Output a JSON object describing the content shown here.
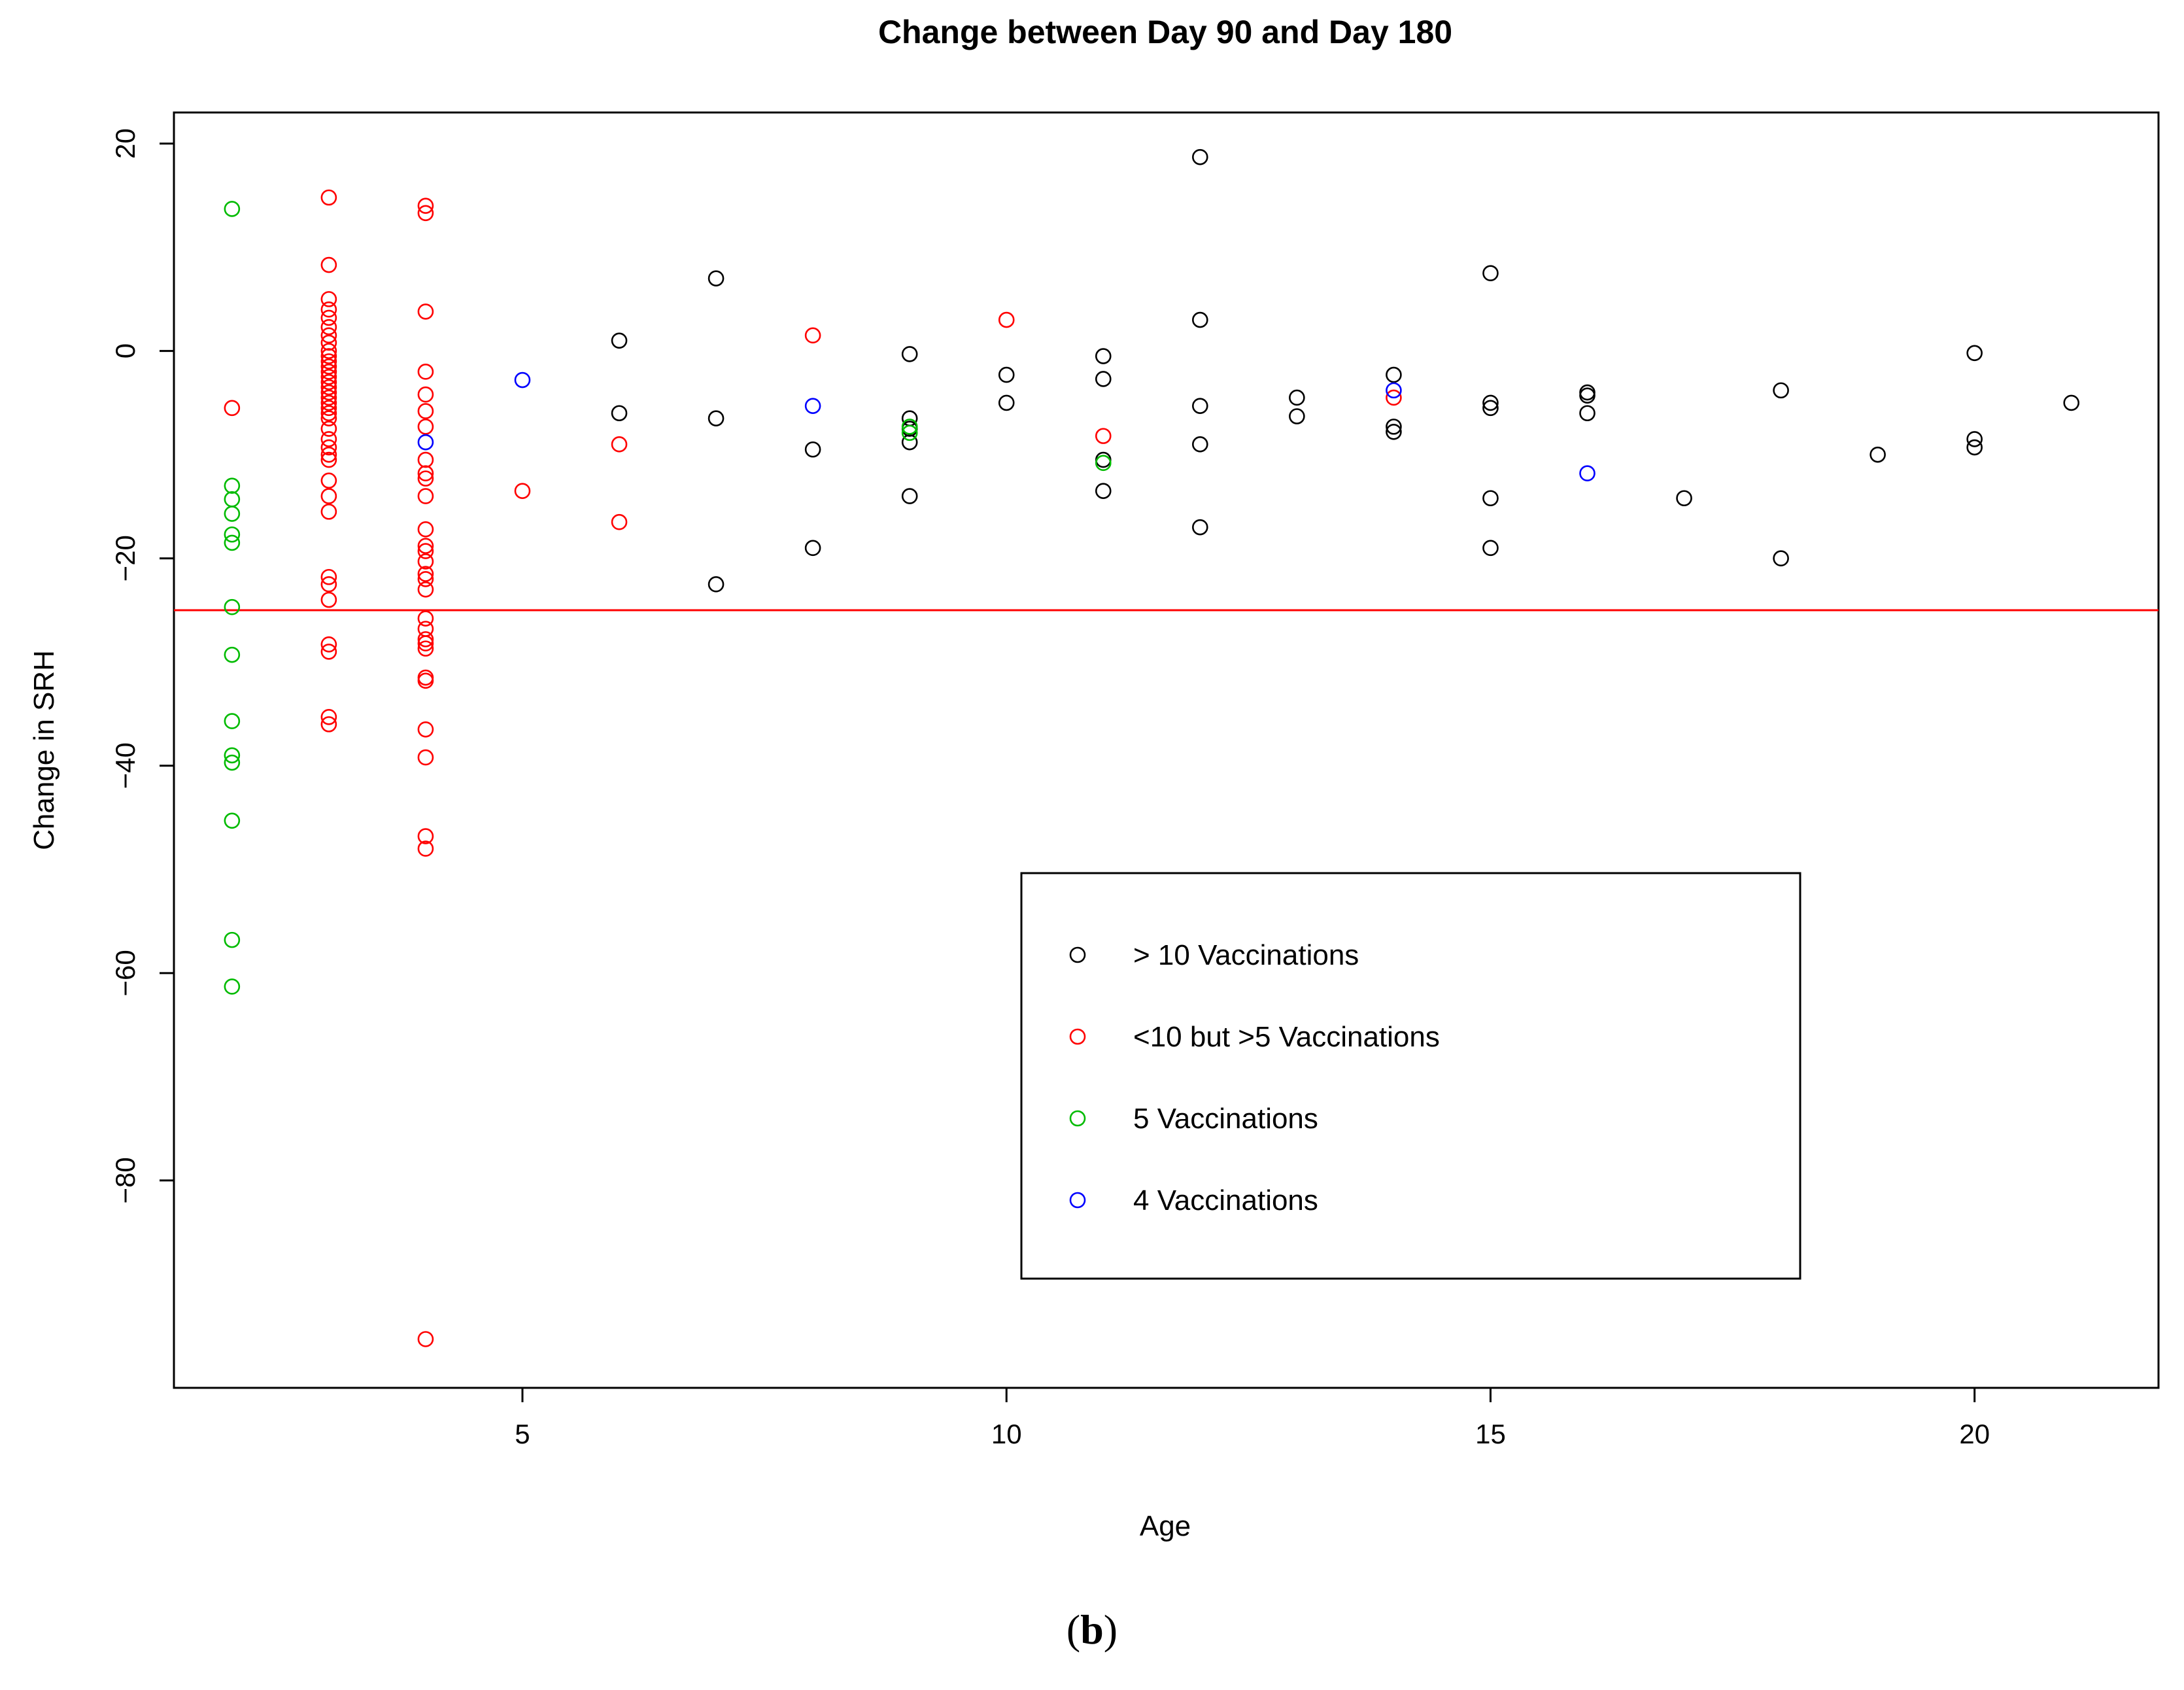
{
  "caption": {
    "open": "(",
    "letter": "b",
    "close": ")"
  },
  "chart_data": {
    "type": "scatter",
    "title": "Change between Day 90 and Day 180",
    "xlabel": "Age",
    "ylabel": "Change in SRH",
    "xlim": [
      1.4,
      21.9
    ],
    "ylim": [
      -100,
      23
    ],
    "x_ticks": [
      5,
      10,
      15,
      20
    ],
    "x_tick_labels": [
      "5",
      "10",
      "15",
      "20"
    ],
    "y_ticks": [
      20,
      0,
      -20,
      -40,
      -60,
      -80
    ],
    "y_tick_labels": [
      "20",
      "0",
      "−20",
      "−40",
      "−60",
      "−80"
    ],
    "reference_line": {
      "y": -25,
      "color": "#ff0000"
    },
    "legend_position": "bottom-center",
    "series": [
      {
        "name": "> 10 Vaccinations",
        "color": "#000000",
        "points": [
          [
            6,
            1
          ],
          [
            6,
            -6
          ],
          [
            7,
            7
          ],
          [
            7,
            -6.5
          ],
          [
            7,
            -22.5
          ],
          [
            8,
            -9.5
          ],
          [
            8,
            -19
          ],
          [
            9,
            -0.3
          ],
          [
            9,
            -6.5
          ],
          [
            9,
            -7.5
          ],
          [
            9,
            -8.8
          ],
          [
            9,
            -14
          ],
          [
            10,
            -2.3
          ],
          [
            10,
            -5
          ],
          [
            11,
            -0.5
          ],
          [
            11,
            -2.7
          ],
          [
            11,
            -10.5
          ],
          [
            11,
            -13.5
          ],
          [
            12,
            18.7
          ],
          [
            12,
            3
          ],
          [
            12,
            -5.3
          ],
          [
            12,
            -9
          ],
          [
            12,
            -17
          ],
          [
            13,
            -4.5
          ],
          [
            13,
            -6.3
          ],
          [
            14,
            -2.3
          ],
          [
            14,
            -7.3
          ],
          [
            14,
            -7.8
          ],
          [
            15,
            7.5
          ],
          [
            15,
            -5
          ],
          [
            15,
            -5.5
          ],
          [
            15,
            -14.2
          ],
          [
            15,
            -19
          ],
          [
            16,
            -4
          ],
          [
            16,
            -4.3
          ],
          [
            16,
            -6
          ],
          [
            17,
            -14.2
          ],
          [
            18,
            -3.8
          ],
          [
            18,
            -20
          ],
          [
            19,
            -10
          ],
          [
            20,
            -0.2
          ],
          [
            20,
            -8.5
          ],
          [
            20,
            -9.3
          ],
          [
            21,
            -5
          ]
        ]
      },
      {
        "name": "<10 but >5 Vaccinations",
        "color": "#ff0000",
        "points": [
          [
            2,
            -5.5
          ],
          [
            3,
            14.8
          ],
          [
            3,
            8.3
          ],
          [
            3,
            5
          ],
          [
            3,
            4
          ],
          [
            3,
            3.2
          ],
          [
            3,
            2.3
          ],
          [
            3,
            1.5
          ],
          [
            3,
            0.8
          ],
          [
            3,
            0
          ],
          [
            3,
            -0.5
          ],
          [
            3,
            -1
          ],
          [
            3,
            -1.5
          ],
          [
            3,
            -2
          ],
          [
            3,
            -2.5
          ],
          [
            3,
            -3
          ],
          [
            3,
            -3.5
          ],
          [
            3,
            -4
          ],
          [
            3,
            -4.5
          ],
          [
            3,
            -5
          ],
          [
            3,
            -5.5
          ],
          [
            3,
            -6
          ],
          [
            3,
            -6.5
          ],
          [
            3,
            -7.5
          ],
          [
            3,
            -8.5
          ],
          [
            3,
            -9.3
          ],
          [
            3,
            -10
          ],
          [
            3,
            -10.5
          ],
          [
            3,
            -12.5
          ],
          [
            3,
            -14
          ],
          [
            3,
            -15.5
          ],
          [
            3,
            -21.8
          ],
          [
            3,
            -22.5
          ],
          [
            3,
            -24
          ],
          [
            3,
            -28.3
          ],
          [
            3,
            -29
          ],
          [
            3,
            -35.3
          ],
          [
            3,
            -36
          ],
          [
            4,
            14
          ],
          [
            4,
            13.3
          ],
          [
            4,
            3.8
          ],
          [
            4,
            -2
          ],
          [
            4,
            -4.2
          ],
          [
            4,
            -5.8
          ],
          [
            4,
            -7.3
          ],
          [
            4,
            -10.5
          ],
          [
            4,
            -11.8
          ],
          [
            4,
            -12.3
          ],
          [
            4,
            -14
          ],
          [
            4,
            -17.2
          ],
          [
            4,
            -18.8
          ],
          [
            4,
            -19.3
          ],
          [
            4,
            -20.3
          ],
          [
            4,
            -21.5
          ],
          [
            4,
            -22
          ],
          [
            4,
            -23
          ],
          [
            4,
            -25.8
          ],
          [
            4,
            -26.8
          ],
          [
            4,
            -27.8
          ],
          [
            4,
            -28.2
          ],
          [
            4,
            -28.7
          ],
          [
            4,
            -31.5
          ],
          [
            4,
            -31.8
          ],
          [
            4,
            -36.5
          ],
          [
            4,
            -39.2
          ],
          [
            4,
            -46.8
          ],
          [
            4,
            -48
          ],
          [
            4,
            -95.3
          ],
          [
            5,
            -13.5
          ],
          [
            6,
            -9
          ],
          [
            6,
            -16.5
          ],
          [
            8,
            1.5
          ],
          [
            10,
            3
          ],
          [
            11,
            -8.2
          ],
          [
            14,
            -4.5
          ]
        ]
      },
      {
        "name": "5 Vaccinations",
        "color": "#00bb00",
        "points": [
          [
            2,
            13.7
          ],
          [
            2,
            -13
          ],
          [
            2,
            -14.3
          ],
          [
            2,
            -15.7
          ],
          [
            2,
            -17.7
          ],
          [
            2,
            -18.5
          ],
          [
            2,
            -24.7
          ],
          [
            2,
            -29.3
          ],
          [
            2,
            -35.7
          ],
          [
            2,
            -39
          ],
          [
            2,
            -39.7
          ],
          [
            2,
            -45.3
          ],
          [
            2,
            -56.8
          ],
          [
            2,
            -61.3
          ],
          [
            9,
            -7.3
          ],
          [
            9,
            -7.9
          ],
          [
            11,
            -10.8
          ]
        ]
      },
      {
        "name": "4 Vaccinations",
        "color": "#0000ff",
        "points": [
          [
            4,
            -8.8
          ],
          [
            5,
            -2.8
          ],
          [
            8,
            -5.3
          ],
          [
            14,
            -3.8
          ],
          [
            16,
            -11.8
          ]
        ]
      }
    ]
  }
}
